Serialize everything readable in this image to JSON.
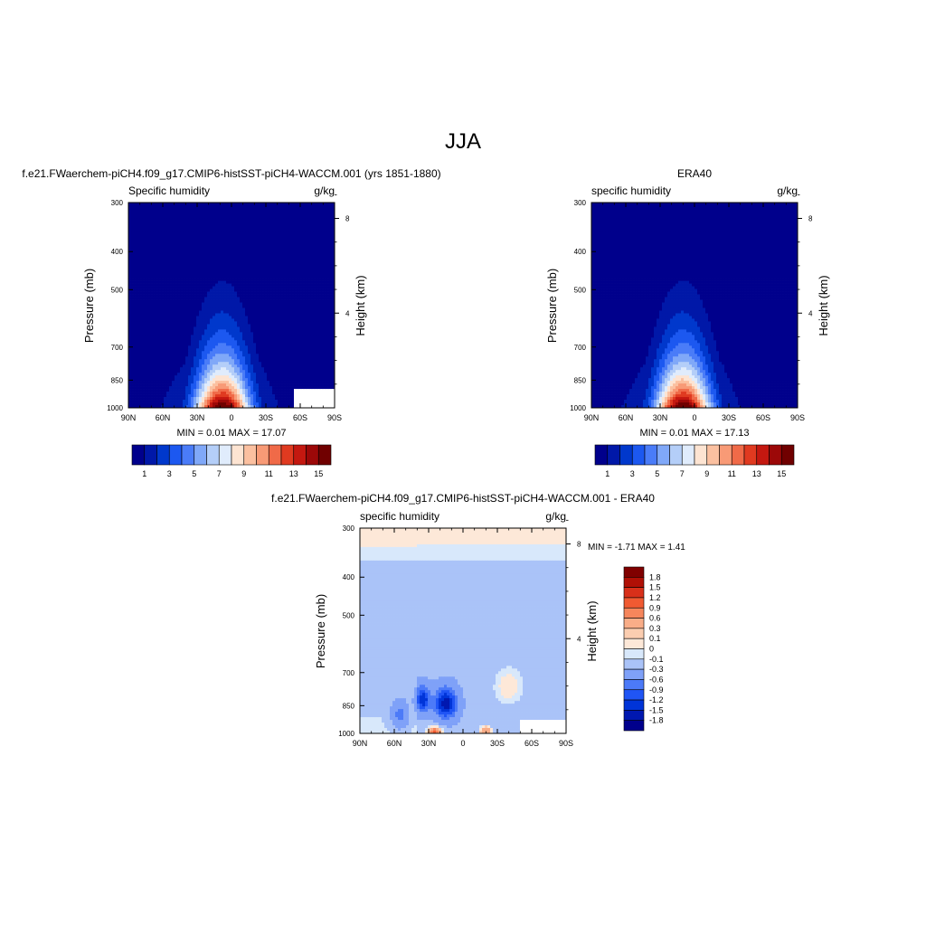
{
  "figure": {
    "title": "JJA"
  },
  "colors": {
    "seq": [
      "#00008c",
      "#0018a8",
      "#0038cc",
      "#1c58f0",
      "#4a7cf8",
      "#80a8f8",
      "#b4cef8",
      "#e0ecfc",
      "#fde4d2",
      "#fbc0a0",
      "#f89a76",
      "#f06a48",
      "#e03a20",
      "#c41810",
      "#9c0808",
      "#700000"
    ],
    "diff": [
      "#00008c",
      "#0018b0",
      "#0034d8",
      "#2055f5",
      "#4c7af8",
      "#7fa1f8",
      "#aac3f8",
      "#d8e8fb",
      "#fde8d8",
      "#fbcdb0",
      "#f9ad88",
      "#f6865c",
      "#f05a32",
      "#d8301a",
      "#b01006",
      "#800000"
    ]
  },
  "chart_data": [
    {
      "type": "heatmap",
      "panel": "left",
      "header": "f.e21.FWaerchem-piCH4.f09_g17.CMIP6-histSST-piCH4-WACCM.001 (yrs 1851-1880)",
      "title_left": "Specific humidity",
      "title_right": "g/kg",
      "xlabel": "",
      "ylabel": "Pressure (mb)",
      "y2label": "Height (km)",
      "x_ticks": [
        "90N",
        "60N",
        "30N",
        "0",
        "30S",
        "60S",
        "90S"
      ],
      "y_ticks": [
        "300",
        "400",
        "500",
        "700",
        "850",
        "1000"
      ],
      "y2_ticks": [
        "8",
        "4"
      ],
      "stats": "MIN =   0.01  MAX =  17.07",
      "colorbar_labels": [
        "1",
        "3",
        "5",
        "7",
        "9",
        "11",
        "13",
        "15"
      ],
      "min": 0.01,
      "max": 17.07,
      "ylim": [
        1000,
        300
      ],
      "peak_lat": 8,
      "peak_value": 17.07,
      "missing_region": {
        "lat": [
          55,
          90
        ],
        "p": [
          900,
          1000
        ]
      }
    },
    {
      "type": "heatmap",
      "panel": "right",
      "header": "ERA40",
      "title_left": "specific humidity",
      "title_right": "g/kg",
      "xlabel": "",
      "ylabel": "Pressure (mb)",
      "y2label": "Height (km)",
      "x_ticks": [
        "90N",
        "60N",
        "30N",
        "0",
        "30S",
        "60S",
        "90S"
      ],
      "y_ticks": [
        "300",
        "400",
        "500",
        "700",
        "850",
        "1000"
      ],
      "y2_ticks": [
        "8",
        "4"
      ],
      "stats": "MIN =   0.01  MAX =  17.13",
      "colorbar_labels": [
        "1",
        "3",
        "5",
        "7",
        "9",
        "11",
        "13",
        "15"
      ],
      "min": 0.01,
      "max": 17.13,
      "ylim": [
        1000,
        300
      ],
      "peak_lat": 10,
      "peak_value": 17.13
    },
    {
      "type": "heatmap",
      "panel": "difference",
      "header": "f.e21.FWaerchem-piCH4.f09_g17.CMIP6-histSST-piCH4-WACCM.001 - ERA40",
      "title_left": "specific humidity",
      "title_right": "g/kg",
      "xlabel": "",
      "ylabel": "Pressure (mb)",
      "y2label": "Height (km)",
      "x_ticks": [
        "90N",
        "60N",
        "30N",
        "0",
        "30S",
        "60S",
        "90S"
      ],
      "y_ticks": [
        "300",
        "400",
        "500",
        "700",
        "850",
        "1000"
      ],
      "y2_ticks": [
        "8",
        "4"
      ],
      "stats": "MIN =  -1.71  MAX =   1.41",
      "colorbar_labels": [
        "1.8",
        "1.5",
        "1.2",
        "0.9",
        "0.6",
        "0.3",
        "0.1",
        "0",
        "-0.1",
        "-0.3",
        "-0.6",
        "-0.9",
        "-1.2",
        "-1.5",
        "-1.8"
      ],
      "min": -1.71,
      "max": 1.41,
      "ylim": [
        1000,
        300
      ],
      "missing_region": {
        "lat": [
          50,
          90
        ],
        "p": [
          920,
          1000
        ]
      }
    }
  ]
}
